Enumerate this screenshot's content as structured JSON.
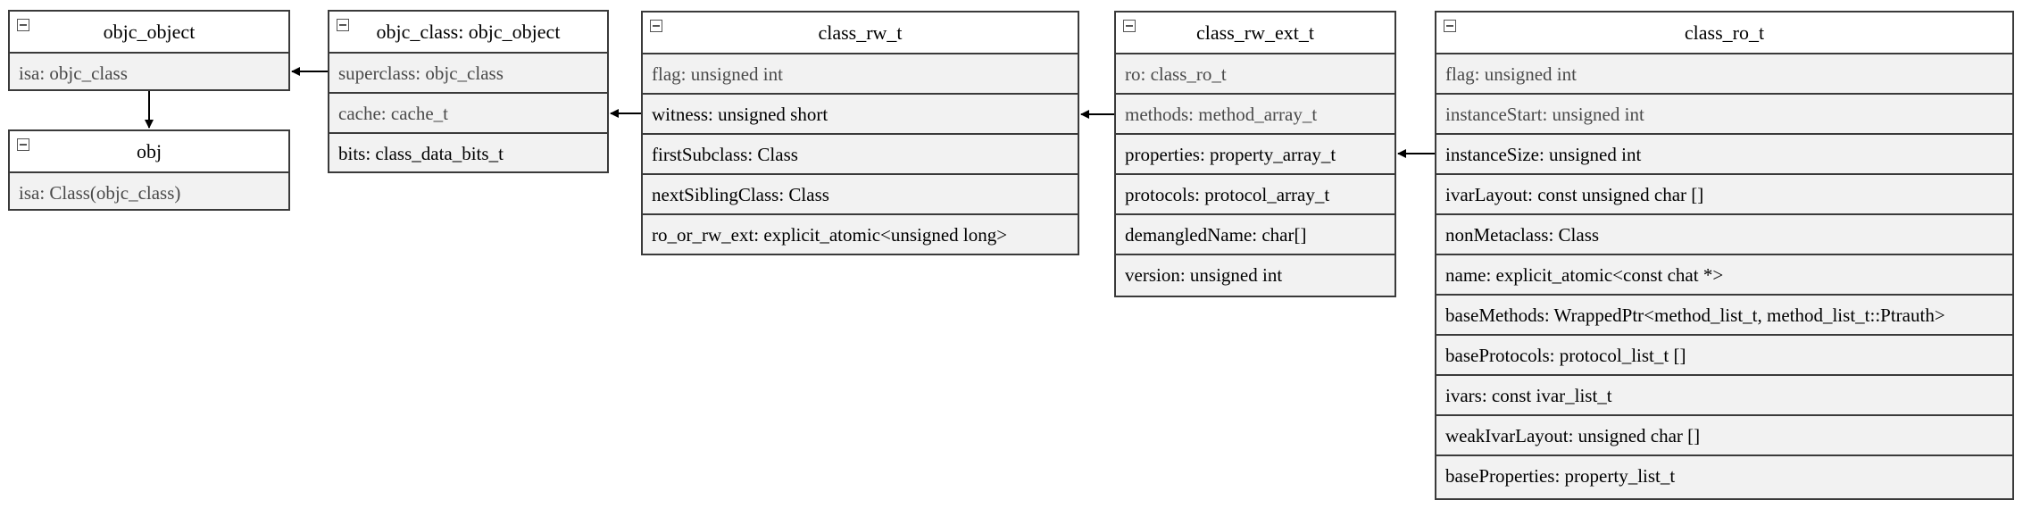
{
  "classes": {
    "objc_object": {
      "title": "objc_object",
      "fields": [
        "isa: objc_class"
      ]
    },
    "obj": {
      "title": "obj",
      "fields": [
        "isa: Class(objc_class)"
      ]
    },
    "objc_class": {
      "title": "objc_class: objc_object",
      "fields": [
        "superclass: objc_class",
        "cache: cache_t",
        "bits: class_data_bits_t"
      ]
    },
    "class_rw_t": {
      "title": "class_rw_t",
      "fields": [
        "flag: unsigned int",
        "witness: unsigned short",
        "firstSubclass: Class",
        "nextSiblingClass: Class",
        "ro_or_rw_ext: explicit_atomic<unsigned long>"
      ]
    },
    "class_rw_ext_t": {
      "title": "class_rw_ext_t",
      "fields": [
        "ro: class_ro_t",
        "methods: method_array_t",
        "properties: property_array_t",
        "protocols: protocol_array_t",
        "demangledName: char[]",
        "version: unsigned int"
      ]
    },
    "class_ro_t": {
      "title": "class_ro_t",
      "fields": [
        "flag: unsigned int",
        "instanceStart: unsigned int",
        "instanceSize: unsigned int",
        "ivarLayout: const unsigned char []",
        "nonMetaclass: Class",
        "name: explicit_atomic<const chat *>",
        "baseMethods: WrappedPtr<method_list_t, method_list_t::Ptrauth>",
        "baseProtocols: protocol_list_t []",
        "ivars: const ivar_list_t",
        "weakIvarLayout: unsigned char []",
        "baseProperties: property_list_t"
      ]
    }
  },
  "colors": {
    "border": "#3a3a3a",
    "header_bg": "#ffffff",
    "row_bg": "#f2f2f2",
    "arrow": "#000000"
  }
}
